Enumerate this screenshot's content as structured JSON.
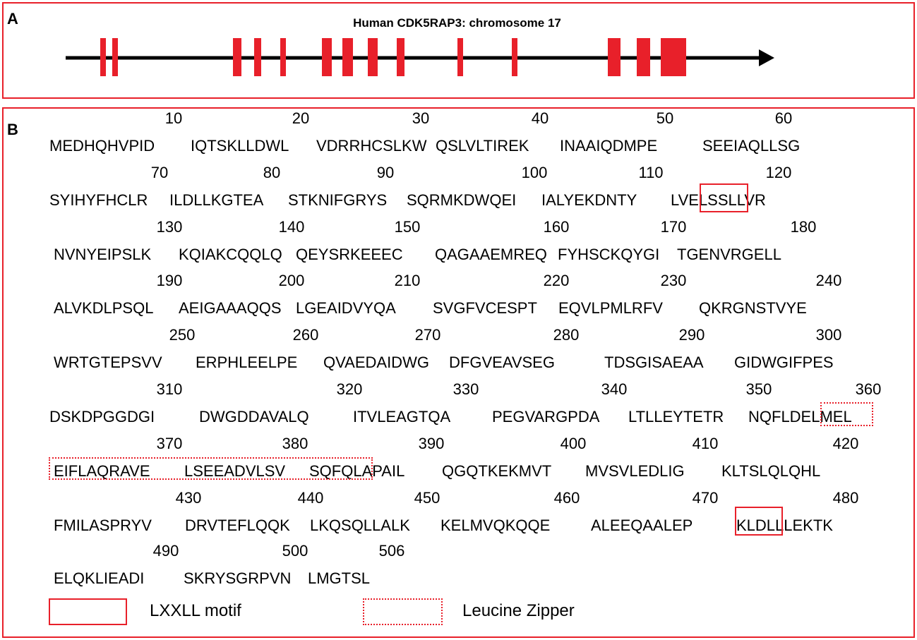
{
  "panel_a": {
    "label": "A",
    "title": "Human CDK5RAP3: chromosome 17"
  },
  "panel_b": {
    "label": "B",
    "rows": [
      {
        "numbers": [
          "10",
          "20",
          "30",
          "40",
          "50",
          "60"
        ],
        "segments": [
          "MEDHQHVPID",
          "IQTSKLLDWL",
          "VDRRHCSLKW",
          "QSLVLTIREK",
          "INAAIQDMPE",
          "SEEIAQLLSG"
        ]
      },
      {
        "numbers": [
          "70",
          "80",
          "90",
          "100",
          "110",
          "120"
        ],
        "segments": [
          "SYIHYFHCLR",
          "ILDLLKGTEA",
          "STKNIFGRYS",
          "SQRMKDWQEI",
          "IALYEKDNTY",
          "LVELSSLLVR"
        ]
      },
      {
        "numbers": [
          "130",
          "140",
          "150",
          "160",
          "170",
          "180"
        ],
        "segments": [
          "NVNYEIPSLK",
          "KQIAKCQQLQ",
          "QEYSRKEEEC",
          "QAGAAEMREQ",
          "FYHSCKQYGI",
          "TGENVRGELL"
        ]
      },
      {
        "numbers": [
          "190",
          "200",
          "210",
          "220",
          "230",
          "240"
        ],
        "segments": [
          "ALVKDLPSQL",
          "AEIGAAAQQS",
          "LGEAIDVYQA",
          "SVGFVCESPT",
          "EQVLPMLRFV",
          "QKRGNSTVYE"
        ]
      },
      {
        "numbers": [
          "250",
          "260",
          "270",
          "280",
          "290",
          "300"
        ],
        "segments": [
          "WRTGTEPSVV",
          "ERPHLEELPE",
          "QVAEDAIDWG",
          "DFGVEAVSEG",
          "TDSGISAEAA",
          "GIDWGIFPES"
        ]
      },
      {
        "numbers": [
          "310",
          "320",
          "330",
          "340",
          "350",
          "360"
        ],
        "segments": [
          "DSKDPGGDGI",
          "DWGDDAVALQ",
          "ITVLEAGTQA",
          "PEGVARGPDA",
          "LTLLEYTETR",
          "NQFLDELMEL"
        ]
      },
      {
        "numbers": [
          "370",
          "380",
          "390",
          "400",
          "410",
          "420"
        ],
        "segments": [
          "EIFLAQRAVE",
          "LSEEADVLSV",
          "SQFQLAPAIL",
          "QGQTKEKMVT",
          "MVSVLEDLIG",
          "KLTSLQLQHL"
        ]
      },
      {
        "numbers": [
          "430",
          "440",
          "450",
          "460",
          "470",
          "480"
        ],
        "segments": [
          "FMILASPRYV",
          "DRVTEFLQQK",
          "LKQSQLLALK",
          "KELMVQKQQE",
          "ALEEQAALEP",
          "KLDLLLEKTK"
        ]
      },
      {
        "numbers": [
          "490",
          "500",
          "506"
        ],
        "segments": [
          "ELQKLIEADI",
          "SKRYSGRPVN",
          "LMGTSL"
        ]
      }
    ],
    "legend": {
      "lxxll": "LXXLL motif",
      "zipper": "Leucine Zipper"
    }
  },
  "colors": {
    "accent": "#e8202a",
    "line": "#000000"
  }
}
